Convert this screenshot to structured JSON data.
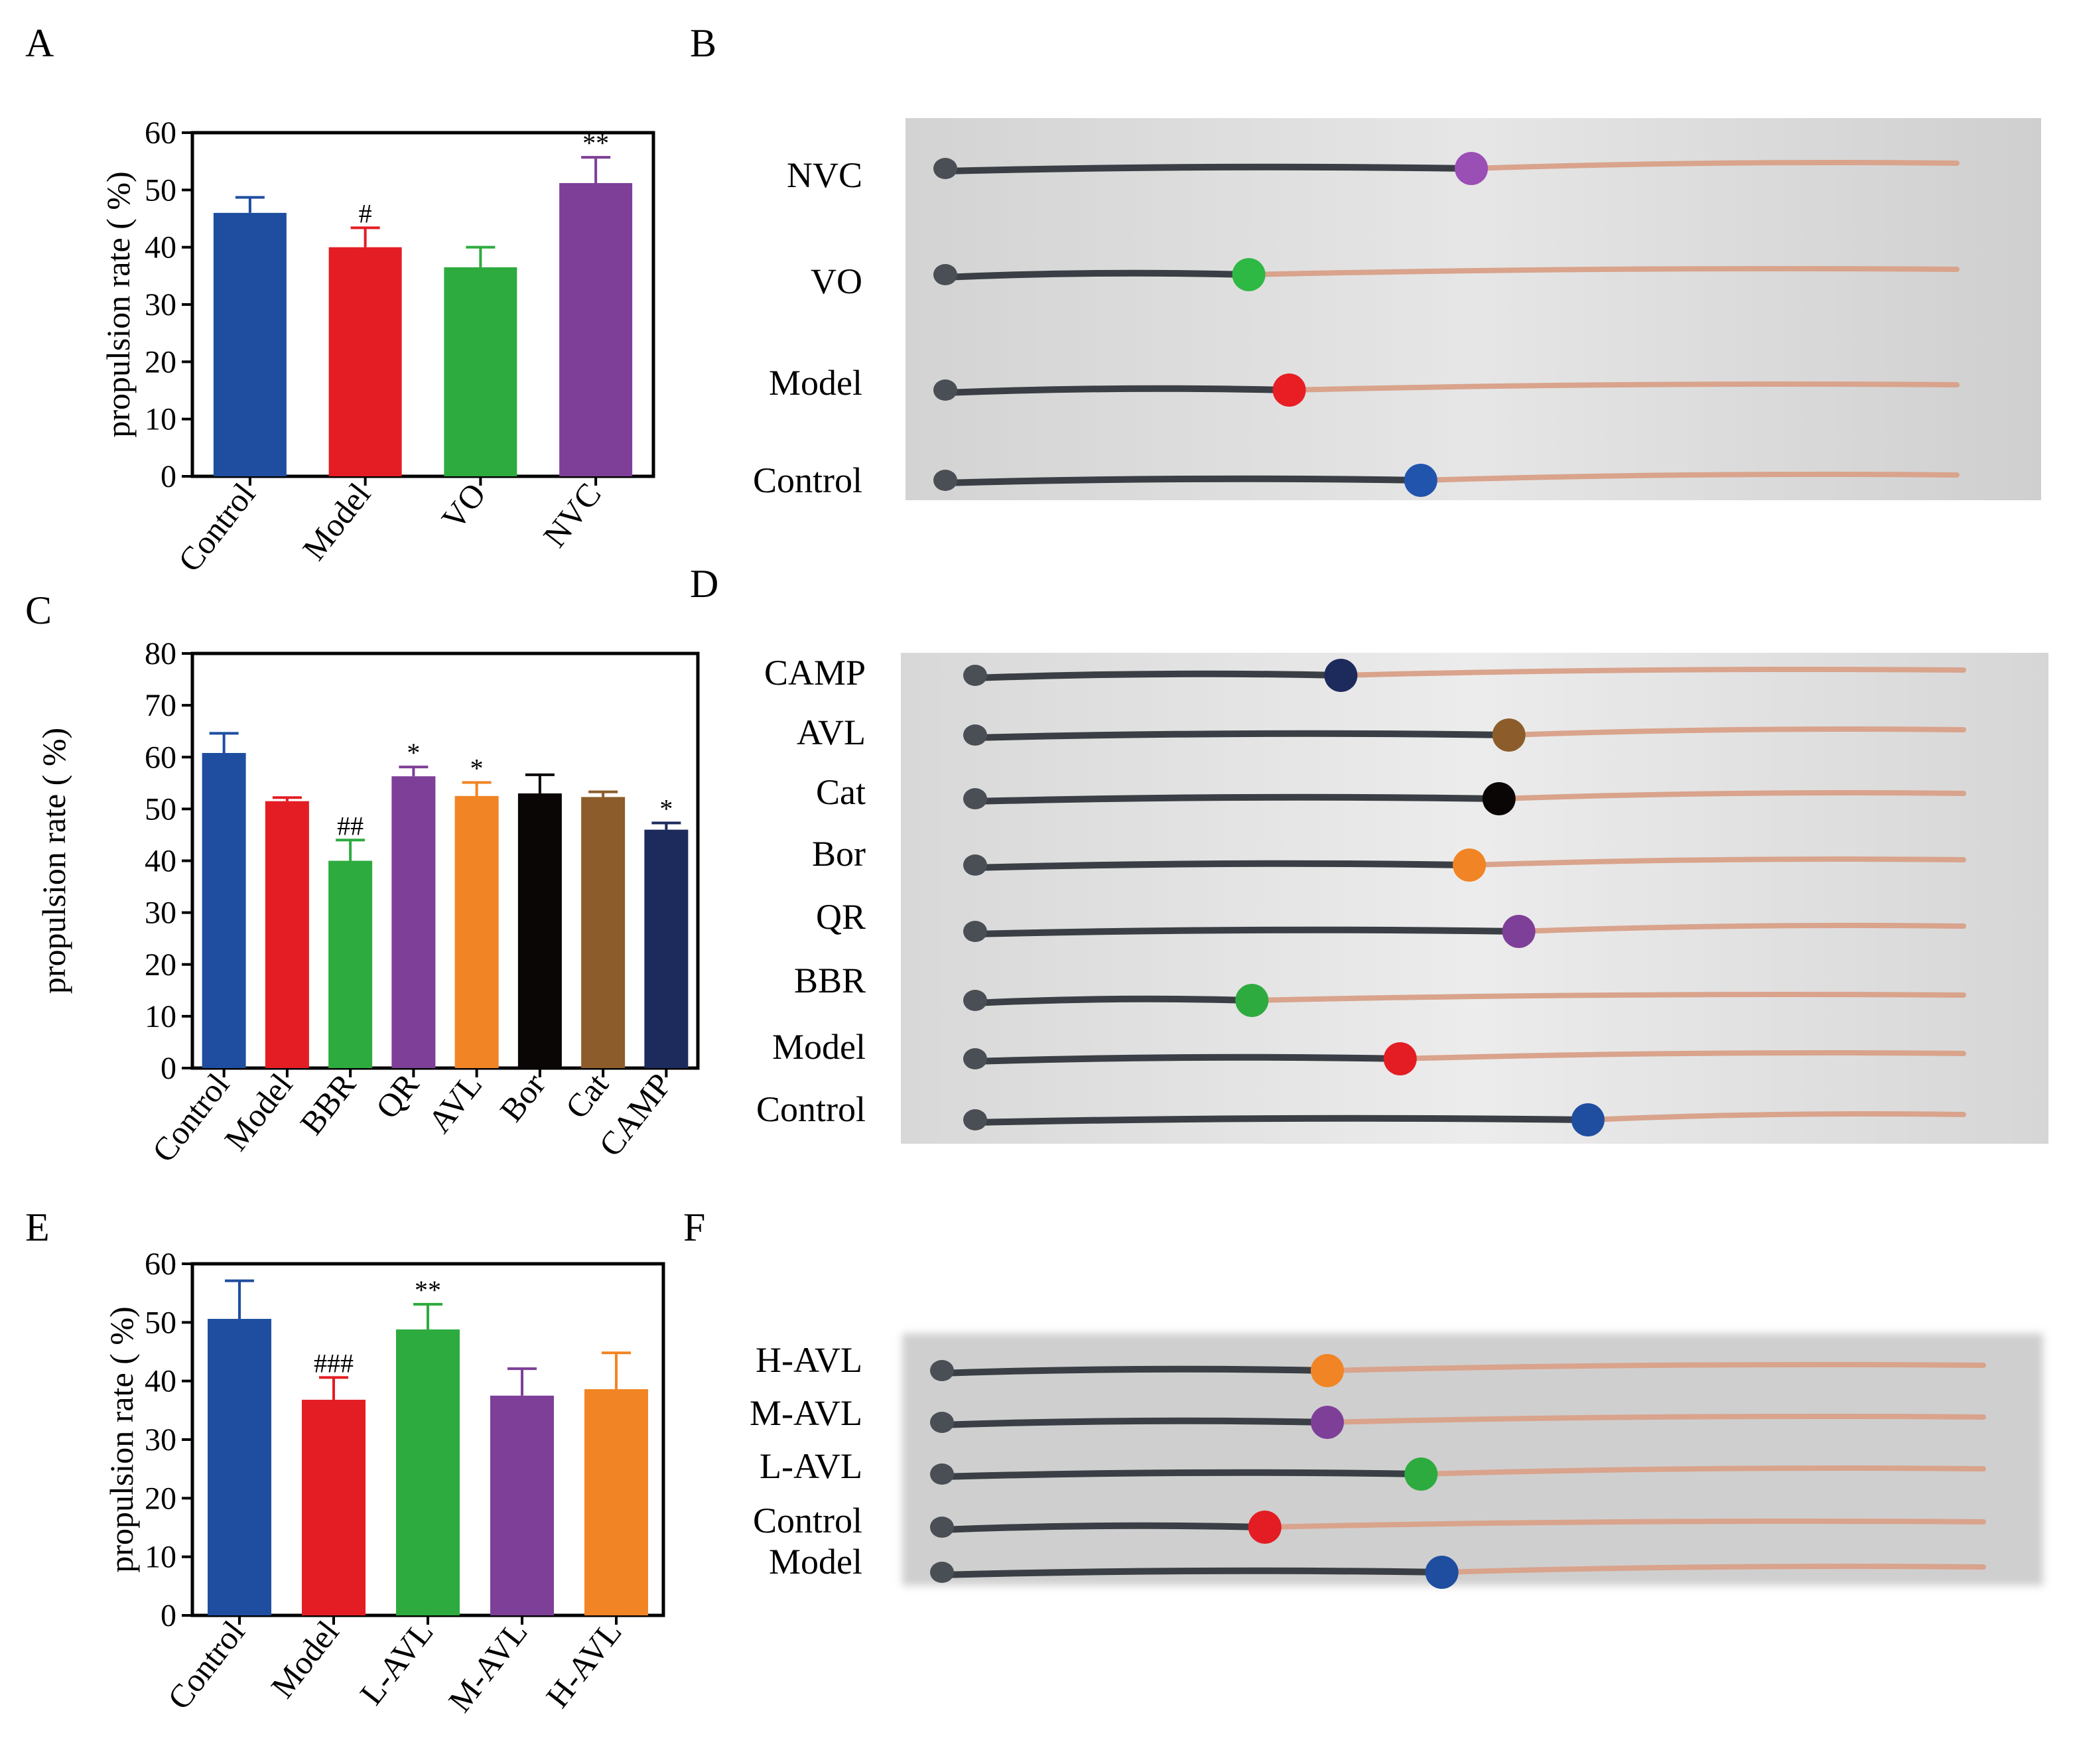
{
  "panel_letters": [
    "A",
    "B",
    "C",
    "D",
    "E",
    "F"
  ],
  "chart_data": [
    {
      "type": "bar",
      "panel": "A",
      "categories": [
        "Control",
        "Model",
        "VO",
        "NVC"
      ],
      "values": [
        46,
        40,
        36.5,
        51.2
      ],
      "errors": [
        2.7,
        3.4,
        3.5,
        4.5
      ],
      "significance": [
        "",
        "#",
        "",
        "**"
      ],
      "colors": [
        "#1f4ea0",
        "#e31d23",
        "#2eab3f",
        "#7e3f98"
      ],
      "ylabel": "propulsion rate ( %)",
      "ylim": [
        0,
        60
      ],
      "yticks": [
        0,
        10,
        20,
        30,
        40,
        50,
        60
      ]
    },
    {
      "type": "bar",
      "panel": "C",
      "categories": [
        "Control",
        "Model",
        "BBR",
        "QR",
        "AVL",
        "Bor",
        "Cat",
        "CAMP"
      ],
      "values": [
        60.8,
        51.5,
        40,
        56.3,
        52.5,
        53,
        52.3,
        46
      ],
      "errors": [
        3.8,
        0.7,
        4,
        1.8,
        2.6,
        3.6,
        1,
        1.3
      ],
      "significance": [
        "",
        "",
        "##",
        "*",
        "*",
        "",
        "",
        "*"
      ],
      "colors": [
        "#1f4ea0",
        "#e31d23",
        "#2eab3f",
        "#7e3f98",
        "#f18424",
        "#0b0606",
        "#8c5d2a",
        "#1d2a5c"
      ],
      "ylabel": "propulsion rate ( %)",
      "ylim": [
        0,
        80
      ],
      "yticks": [
        0,
        10,
        20,
        30,
        40,
        50,
        60,
        70,
        80
      ]
    },
    {
      "type": "bar",
      "panel": "E",
      "categories": [
        "Control",
        "Model",
        "L-AVL",
        "M-AVL",
        "H-AVL"
      ],
      "values": [
        50.6,
        36.8,
        48.8,
        37.5,
        38.6
      ],
      "errors": [
        6.5,
        3.8,
        4.3,
        4.6,
        6.2
      ],
      "significance": [
        "",
        "###",
        "**",
        "",
        ""
      ],
      "colors": [
        "#1f4ea0",
        "#e31d23",
        "#2eab3f",
        "#7e3f98",
        "#f18424"
      ],
      "ylabel": "propulsion rate ( %)",
      "ylim": [
        0,
        60
      ],
      "yticks": [
        0,
        10,
        20,
        30,
        40,
        50,
        60
      ]
    }
  ],
  "photos": [
    {
      "panel": "B",
      "labels": [
        "NVC",
        "VO",
        "Model",
        "Control"
      ],
      "marker_colors": [
        "#9a4fb5",
        "#2eb844",
        "#e91d24",
        "#2154ad"
      ],
      "marker_fraction": [
        0.52,
        0.3,
        0.34,
        0.47
      ]
    },
    {
      "panel": "D",
      "labels": [
        "CAMP",
        "AVL",
        "Cat",
        "Bor",
        "QR",
        "BBR",
        "Model",
        "Control"
      ],
      "marker_colors": [
        "#1d2a5c",
        "#8c5d2a",
        "#0b0606",
        "#f18424",
        "#7e3f98",
        "#2eab3f",
        "#e31d23",
        "#1f4ea0"
      ],
      "marker_fraction": [
        0.37,
        0.54,
        0.53,
        0.5,
        0.55,
        0.28,
        0.43,
        0.62
      ]
    },
    {
      "panel": "F",
      "labels": [
        "H-AVL",
        "M-AVL",
        "L-AVL",
        "Control",
        "Model"
      ],
      "marker_colors": [
        "#f18424",
        "#7e3f98",
        "#2eab3f",
        "#e31d23",
        "#1f4ea0"
      ],
      "marker_fraction": [
        0.37,
        0.37,
        0.46,
        0.31,
        0.48
      ]
    }
  ]
}
